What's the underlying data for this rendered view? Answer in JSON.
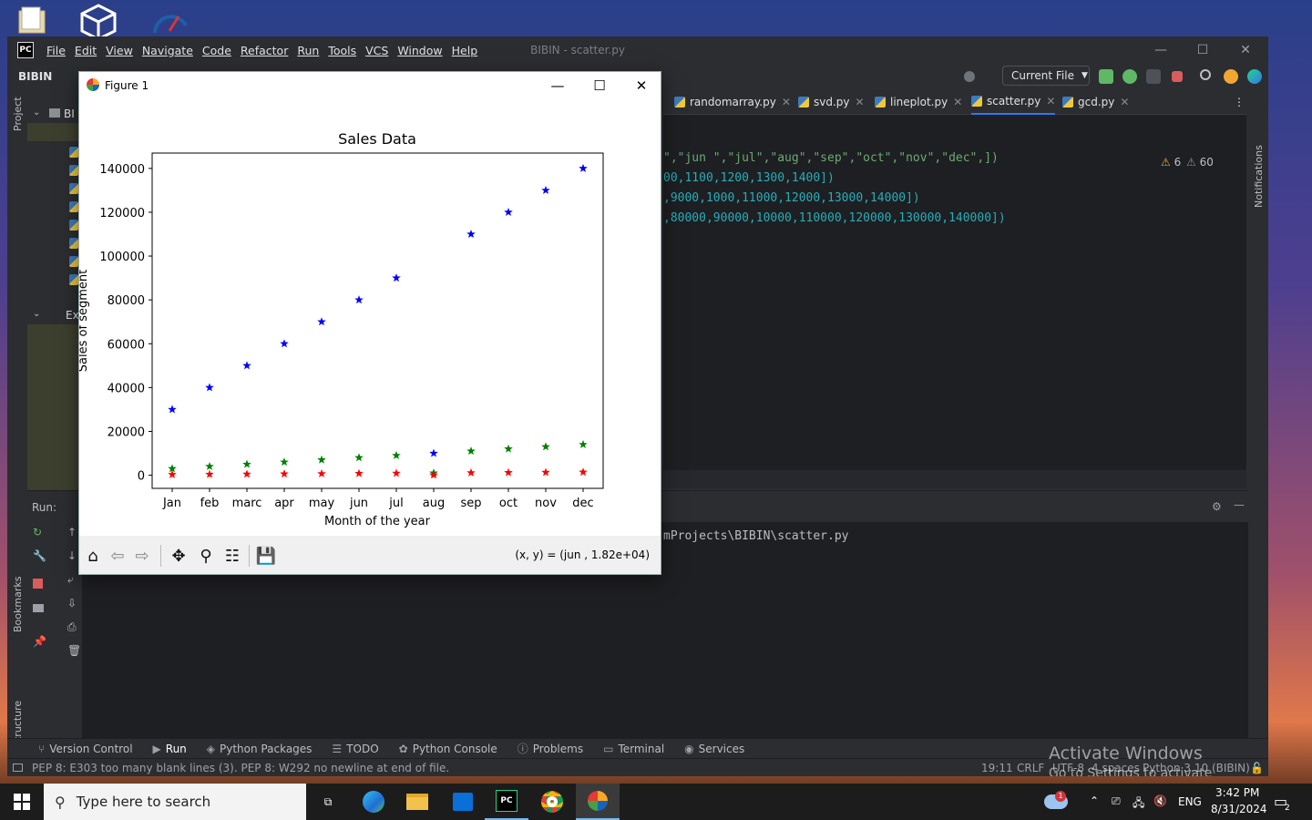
{
  "ide": {
    "menu": [
      "File",
      "Edit",
      "View",
      "Navigate",
      "Code",
      "Refactor",
      "Run",
      "Tools",
      "VCS",
      "Window",
      "Help"
    ],
    "window_title": "BIBIN - scatter.py",
    "project": "BIBIN",
    "run_config": "Current File",
    "tabs": [
      "randomarray.py",
      "svd.py",
      "lineplot.py",
      "scatter.py",
      "gcd.py"
    ],
    "active_tab": "scatter.py",
    "code_lines": [
      "\",\"jun \",\"jul\",\"aug\",\"sep\",\"oct\",\"nov\",\"dec\",])",
      "00,1100,1200,1300,1400])",
      ",9000,1000,11000,12000,13000,14000])",
      ",80000,90000,10000,110000,120000,130000,140000])"
    ],
    "warnings": "6",
    "weak_warnings": "60",
    "project_tree_root": "BI",
    "external_libs": "Ex",
    "run_label": "Run:",
    "run_output": "mProjects\\BIBIN\\scatter.py",
    "sidebar_left": {
      "project": "Project",
      "bookmarks": "Bookmarks",
      "structure": "Structure"
    },
    "sidebar_right": {
      "notifications": "Notifications"
    },
    "tool_windows": [
      "Version Control",
      "Run",
      "Python Packages",
      "TODO",
      "Python Console",
      "Problems",
      "Terminal",
      "Services"
    ],
    "status_message": "PEP 8: E303 too many blank lines (3). PEP 8: W292 no newline at end of file.",
    "status_right": [
      "19:11",
      "CRLF",
      "UTF-8",
      "4 spaces",
      "Python 3.10 (BIBIN)"
    ],
    "activate": {
      "line1": "Activate Windows",
      "line2": "Go to Settings to activate Windows."
    }
  },
  "figure": {
    "window_title": "Figure 1",
    "coords": "(x, y) = (jun , 1.82e+04)"
  },
  "chart_data": {
    "type": "scatter",
    "title": "Sales Data",
    "xlabel": "Month of the year",
    "ylabel": "Sales of segment",
    "categories": [
      "Jan",
      "feb",
      "marc",
      "apr",
      "may",
      "jun",
      "jul",
      "aug",
      "sep",
      "oct",
      "nov",
      "dec"
    ],
    "ylim": [
      -6000,
      147000
    ],
    "yticks": [
      "0",
      "20000",
      "40000",
      "60000",
      "80000",
      "100000",
      "120000",
      "140000"
    ],
    "marker": "*",
    "series": [
      {
        "color": "#0000ff",
        "values": [
          30000,
          40000,
          50000,
          60000,
          70000,
          80000,
          90000,
          10000,
          110000,
          120000,
          130000,
          140000
        ]
      },
      {
        "color": "#008000",
        "values": [
          3000,
          4000,
          5000,
          6000,
          7000,
          8000,
          9000,
          1000,
          11000,
          12000,
          13000,
          14000
        ]
      },
      {
        "color": "#ff0000",
        "values": [
          300,
          400,
          500,
          600,
          700,
          800,
          900,
          100,
          1100,
          1200,
          1300,
          1400
        ]
      }
    ]
  },
  "taskbar": {
    "search_placeholder": "Type here to search",
    "time": "3:42 PM",
    "date": "8/31/2024",
    "lang": "ENG",
    "weather_badge": "1",
    "notif_count": "2"
  }
}
